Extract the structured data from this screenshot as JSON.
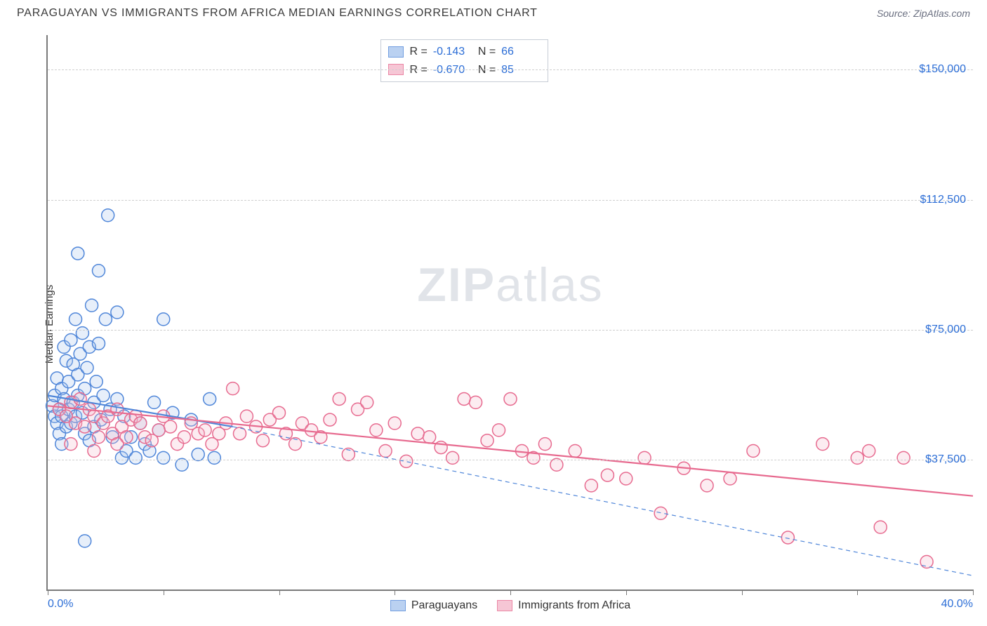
{
  "header": {
    "title": "PARAGUAYAN VS IMMIGRANTS FROM AFRICA MEDIAN EARNINGS CORRELATION CHART",
    "source": "Source: ZipAtlas.com"
  },
  "watermark": {
    "part1": "ZIP",
    "part2": "atlas"
  },
  "chart": {
    "type": "scatter",
    "ylabel": "Median Earnings",
    "xlim": [
      0,
      40
    ],
    "ylim": [
      0,
      160000
    ],
    "x_ticks": [
      0,
      5,
      10,
      15,
      20,
      25,
      30,
      35,
      40
    ],
    "x_tick_labels": {
      "0": "0.0%",
      "40": "40.0%"
    },
    "y_gridlines": [
      37500,
      75000,
      112500,
      150000
    ],
    "y_tick_labels": {
      "37500": "$37,500",
      "75000": "$75,000",
      "112500": "$112,500",
      "150000": "$150,000"
    },
    "grid_color": "#cfcfcf",
    "background_color": "#ffffff",
    "axis_color": "#7a7a7a",
    "label_color": "#2b6dd6",
    "marker_radius": 9,
    "marker_stroke_width": 1.5,
    "marker_fill_opacity": 0.28,
    "line_width": 2.2,
    "series": [
      {
        "key": "paraguayans",
        "label": "Paraguayans",
        "color_stroke": "#4f86d9",
        "color_fill": "#a9c6ee",
        "R": "-0.143",
        "N": "66",
        "trend_solid": {
          "x1": 0,
          "y1": 56000,
          "x2": 8,
          "y2": 47000
        },
        "trend_dash": {
          "x1": 8,
          "y1": 47000,
          "x2": 40,
          "y2": 4000
        },
        "points": [
          [
            0.2,
            53000
          ],
          [
            0.3,
            50000
          ],
          [
            0.3,
            56000
          ],
          [
            0.4,
            48000
          ],
          [
            0.4,
            61000
          ],
          [
            0.5,
            45000
          ],
          [
            0.5,
            52000
          ],
          [
            0.6,
            58000
          ],
          [
            0.6,
            50000
          ],
          [
            0.7,
            55000
          ],
          [
            0.7,
            70000
          ],
          [
            0.8,
            47000
          ],
          [
            0.8,
            66000
          ],
          [
            0.9,
            52000
          ],
          [
            0.9,
            60000
          ],
          [
            1.0,
            48000
          ],
          [
            1.0,
            72000
          ],
          [
            1.1,
            65000
          ],
          [
            1.1,
            54000
          ],
          [
            1.2,
            50000
          ],
          [
            1.2,
            78000
          ],
          [
            1.3,
            56000
          ],
          [
            1.3,
            62000
          ],
          [
            1.4,
            68000
          ],
          [
            1.5,
            74000
          ],
          [
            1.5,
            51000
          ],
          [
            1.6,
            58000
          ],
          [
            1.6,
            45000
          ],
          [
            1.7,
            64000
          ],
          [
            1.8,
            70000
          ],
          [
            1.8,
            43000
          ],
          [
            1.9,
            82000
          ],
          [
            2.0,
            54000
          ],
          [
            2.0,
            47000
          ],
          [
            2.1,
            60000
          ],
          [
            2.2,
            92000
          ],
          [
            2.3,
            49000
          ],
          [
            2.4,
            56000
          ],
          [
            2.5,
            78000
          ],
          [
            2.6,
            108000
          ],
          [
            2.7,
            52000
          ],
          [
            2.8,
            44000
          ],
          [
            3.0,
            80000
          ],
          [
            3.0,
            55000
          ],
          [
            3.2,
            38000
          ],
          [
            3.3,
            50000
          ],
          [
            3.4,
            40000
          ],
          [
            3.6,
            44000
          ],
          [
            3.8,
            38000
          ],
          [
            4.0,
            48000
          ],
          [
            4.2,
            42000
          ],
          [
            4.4,
            40000
          ],
          [
            4.6,
            54000
          ],
          [
            4.8,
            46000
          ],
          [
            5.0,
            78000
          ],
          [
            5.0,
            38000
          ],
          [
            5.4,
            51000
          ],
          [
            5.8,
            36000
          ],
          [
            6.2,
            49000
          ],
          [
            6.5,
            39000
          ],
          [
            7.0,
            55000
          ],
          [
            7.2,
            38000
          ],
          [
            1.6,
            14000
          ],
          [
            2.2,
            71000
          ],
          [
            1.3,
            97000
          ],
          [
            0.6,
            42000
          ]
        ]
      },
      {
        "key": "immigrants_africa",
        "label": "Immigrants from Africa",
        "color_stroke": "#e76a8f",
        "color_fill": "#f5b9cb",
        "R": "-0.670",
        "N": "85",
        "trend_solid": {
          "x1": 0,
          "y1": 53000,
          "x2": 40,
          "y2": 27000
        },
        "trend_dash": null,
        "points": [
          [
            0.5,
            52000
          ],
          [
            0.8,
            50000
          ],
          [
            1.0,
            54000
          ],
          [
            1.2,
            48000
          ],
          [
            1.4,
            55000
          ],
          [
            1.6,
            47000
          ],
          [
            1.8,
            52000
          ],
          [
            2.0,
            50000
          ],
          [
            2.2,
            44000
          ],
          [
            2.4,
            48000
          ],
          [
            2.6,
            50000
          ],
          [
            2.8,
            45000
          ],
          [
            3.0,
            52000
          ],
          [
            3.2,
            47000
          ],
          [
            3.4,
            44000
          ],
          [
            3.6,
            49000
          ],
          [
            3.8,
            50000
          ],
          [
            4.0,
            48000
          ],
          [
            4.2,
            44000
          ],
          [
            4.5,
            43000
          ],
          [
            4.8,
            46000
          ],
          [
            5.0,
            50000
          ],
          [
            5.3,
            47000
          ],
          [
            5.6,
            42000
          ],
          [
            5.9,
            44000
          ],
          [
            6.2,
            48000
          ],
          [
            6.5,
            45000
          ],
          [
            6.8,
            46000
          ],
          [
            7.1,
            42000
          ],
          [
            7.4,
            45000
          ],
          [
            7.7,
            48000
          ],
          [
            8.0,
            58000
          ],
          [
            8.3,
            45000
          ],
          [
            8.6,
            50000
          ],
          [
            9.0,
            47000
          ],
          [
            9.3,
            43000
          ],
          [
            9.6,
            49000
          ],
          [
            10.0,
            51000
          ],
          [
            10.3,
            45000
          ],
          [
            10.7,
            42000
          ],
          [
            11.0,
            48000
          ],
          [
            11.4,
            46000
          ],
          [
            11.8,
            44000
          ],
          [
            12.2,
            49000
          ],
          [
            12.6,
            55000
          ],
          [
            13.0,
            39000
          ],
          [
            13.4,
            52000
          ],
          [
            13.8,
            54000
          ],
          [
            14.2,
            46000
          ],
          [
            14.6,
            40000
          ],
          [
            15.0,
            48000
          ],
          [
            15.5,
            37000
          ],
          [
            16.0,
            45000
          ],
          [
            16.5,
            44000
          ],
          [
            17.0,
            41000
          ],
          [
            17.5,
            38000
          ],
          [
            18.0,
            55000
          ],
          [
            18.5,
            54000
          ],
          [
            19.0,
            43000
          ],
          [
            19.5,
            46000
          ],
          [
            20.0,
            55000
          ],
          [
            20.5,
            40000
          ],
          [
            21.0,
            38000
          ],
          [
            21.5,
            42000
          ],
          [
            22.0,
            36000
          ],
          [
            22.8,
            40000
          ],
          [
            23.5,
            30000
          ],
          [
            24.2,
            33000
          ],
          [
            25.0,
            32000
          ],
          [
            25.8,
            38000
          ],
          [
            26.5,
            22000
          ],
          [
            27.5,
            35000
          ],
          [
            28.5,
            30000
          ],
          [
            29.5,
            32000
          ],
          [
            30.5,
            40000
          ],
          [
            32.0,
            15000
          ],
          [
            33.5,
            42000
          ],
          [
            35.0,
            38000
          ],
          [
            35.5,
            40000
          ],
          [
            36.0,
            18000
          ],
          [
            37.0,
            38000
          ],
          [
            38.0,
            8000
          ],
          [
            1.0,
            42000
          ],
          [
            2.0,
            40000
          ],
          [
            3.0,
            42000
          ]
        ]
      }
    ]
  }
}
